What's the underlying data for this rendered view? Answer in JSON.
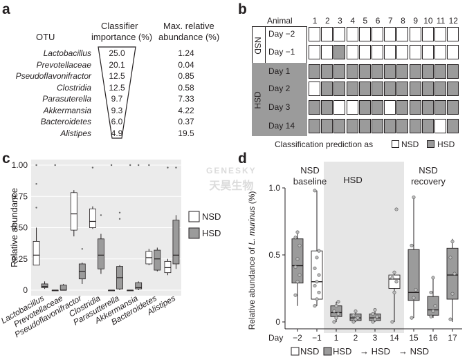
{
  "panel_a": {
    "letter": "a",
    "col_otu": "OTU",
    "col_importance": [
      "Classifier",
      "importance (%)"
    ],
    "col_abundance": [
      "Max. relative",
      "abundance (%)"
    ],
    "rows": [
      {
        "otu": "Lactobacillus",
        "importance": "25.0",
        "abundance": "1.24"
      },
      {
        "otu": "Prevotellaceae",
        "importance": "20.1",
        "abundance": "0.04"
      },
      {
        "otu": "Pseudoflavonifractor",
        "importance": "12.5",
        "abundance": "0.85"
      },
      {
        "otu": "Clostridia",
        "importance": "12.5",
        "abundance": "0.58"
      },
      {
        "otu": "Parasuterella",
        "importance": "9.7",
        "abundance": "7.33"
      },
      {
        "otu": "Akkermansia",
        "importance": "9.3",
        "abundance": "4.22"
      },
      {
        "otu": "Bacteroidetes",
        "importance": "6.0",
        "abundance": "0.37"
      },
      {
        "otu": "Alistipes",
        "importance": "4.9",
        "abundance": "19.5"
      }
    ]
  },
  "panel_b": {
    "letter": "b",
    "animal_label": "Animal",
    "animals": [
      "1",
      "2",
      "3",
      "4",
      "5",
      "6",
      "7",
      "8",
      "9",
      "10",
      "11",
      "12"
    ],
    "group_nsd": "NSD",
    "group_hsd": "HSD",
    "days": [
      "Day −2",
      "Day −1",
      "Day 1",
      "Day 2",
      "Day 3",
      "Day 14"
    ],
    "grid": [
      [
        "N",
        "N",
        "N",
        "N",
        "N",
        "N",
        "N",
        "N",
        "N",
        "N",
        "N",
        "N"
      ],
      [
        "N",
        "N",
        "H",
        "N",
        "N",
        "N",
        "N",
        "N",
        "N",
        "N",
        "N",
        "N"
      ],
      [
        "H",
        "H",
        "H",
        "H",
        "H",
        "H",
        "H",
        "H",
        "H",
        "H",
        "H",
        "H"
      ],
      [
        "N",
        "H",
        "H",
        "H",
        "H",
        "H",
        "H",
        "H",
        "H",
        "H",
        "H",
        "H"
      ],
      [
        "H",
        "H",
        "N",
        "N",
        "H",
        "H",
        "N",
        "H",
        "H",
        "H",
        "H",
        "H"
      ],
      [
        "H",
        "H",
        "H",
        "H",
        "H",
        "H",
        "H",
        "H",
        "H",
        "H",
        "N",
        "H"
      ]
    ],
    "legend_prefix": "Classification prediction as",
    "legend_nsd": "NSD",
    "legend_hsd": "HSD",
    "colors": {
      "nsd": "#ffffff",
      "hsd": "#9b9b9b"
    }
  },
  "watermark": {
    "line1": "GENESKY",
    "line2": "天昊生物"
  },
  "chart_data": [
    {
      "panel": "c",
      "type": "boxplot",
      "ylabel": "Relative abundance",
      "ylim": [
        0,
        1.0
      ],
      "yticks": [
        "0",
        "0.25",
        "0.50",
        "0.75",
        "1.00"
      ],
      "categories": [
        "Lactobacillus",
        "Prevotellaceae",
        "Pseudoflavonifractor",
        "Clostridia",
        "Parasutterella",
        "Akkermansia",
        "Bacteroidetes",
        "Alistipes"
      ],
      "legend": [
        "NSD",
        "HSD"
      ],
      "series": [
        {
          "name": "NSD",
          "boxes": [
            {
              "min": 0.2,
              "q1": 0.2,
              "median": 0.28,
              "q3": 0.39,
              "max": 0.5,
              "outliers": [
                0.66,
                0.85,
                1.0
              ]
            },
            {
              "min": 0.0,
              "q1": 0.0,
              "median": 0.0,
              "q3": 0.0,
              "max": 0.0,
              "outliers": [
                1.0
              ]
            },
            {
              "min": 0.43,
              "q1": 0.48,
              "median": 0.61,
              "q3": 0.78,
              "max": 0.8,
              "outliers": []
            },
            {
              "min": 0.49,
              "q1": 0.5,
              "median": 0.55,
              "q3": 0.65,
              "max": 0.67,
              "outliers": [
                0.98
              ]
            },
            {
              "min": 0.0,
              "q1": 0.0,
              "median": 0.0,
              "q3": 0.0,
              "max": 0.0,
              "outliers": [
                1.0
              ]
            },
            {
              "min": 0.0,
              "q1": 0.0,
              "median": 0.0,
              "q3": 0.0,
              "max": 0.0,
              "outliers": [
                1.0
              ]
            },
            {
              "min": 0.2,
              "q1": 0.21,
              "median": 0.26,
              "q3": 0.31,
              "max": 0.33,
              "outliers": [
                1.0
              ]
            },
            {
              "min": 0.12,
              "q1": 0.14,
              "median": 0.18,
              "q3": 0.23,
              "max": 0.25,
              "outliers": [
                0.98
              ]
            }
          ]
        },
        {
          "name": "HSD",
          "boxes": [
            {
              "min": 0.01,
              "q1": 0.02,
              "median": 0.03,
              "q3": 0.05,
              "max": 0.07,
              "outliers": []
            },
            {
              "min": 0.0,
              "q1": 0.0,
              "median": 0.0,
              "q3": 0.04,
              "max": 0.05,
              "outliers": []
            },
            {
              "min": 0.05,
              "q1": 0.09,
              "median": 0.15,
              "q3": 0.21,
              "max": 0.22,
              "outliers": [
                0.33
              ]
            },
            {
              "min": 0.13,
              "q1": 0.17,
              "median": 0.28,
              "q3": 0.41,
              "max": 0.45,
              "outliers": [
                0.6
              ]
            },
            {
              "min": 0.0,
              "q1": 0.01,
              "median": 0.1,
              "q3": 0.19,
              "max": 0.2,
              "outliers": [
                0.57,
                0.62
              ]
            },
            {
              "min": 0.0,
              "q1": 0.01,
              "median": 0.02,
              "q3": 0.06,
              "max": 0.07,
              "outliers": [
                1.0
              ]
            },
            {
              "min": 0.15,
              "q1": 0.16,
              "median": 0.25,
              "q3": 0.32,
              "max": 0.34,
              "outliers": []
            },
            {
              "min": 0.17,
              "q1": 0.21,
              "median": 0.28,
              "q3": 0.56,
              "max": 0.6,
              "outliers": [
                0.98
              ]
            }
          ]
        }
      ]
    },
    {
      "panel": "d",
      "type": "boxplot",
      "ylabel_prefix": "Relative abundance of ",
      "ylabel_italic": "L. murinus",
      "ylabel_suffix": " (%)",
      "ylim": [
        0,
        1.0
      ],
      "yticks": [
        "0",
        "0.5",
        "1.0"
      ],
      "x_title": "Day",
      "categories": [
        "−2",
        "−1",
        "1",
        "2",
        "3",
        "14",
        "15",
        "16",
        "17"
      ],
      "phases": [
        "NSD baseline",
        "HSD",
        "NSD recovery"
      ],
      "shaded_region": [
        1,
        14
      ],
      "legend_text": "NSD  HSD → HSD → NSD",
      "legend": {
        "nsd": "NSD",
        "hsd": "HSD",
        "arrow1": "→ HSD",
        "arrow2": "→ NSD"
      },
      "box_style": [
        "H",
        "N",
        "H",
        "H",
        "H",
        "N",
        "H",
        "H",
        "H"
      ],
      "boxes": [
        {
          "min": 0.12,
          "q1": 0.29,
          "median": 0.42,
          "q3": 0.62,
          "max": 0.68,
          "points": [
            0.2,
            0.3,
            0.35,
            0.41,
            0.47,
            0.57,
            0.63,
            0.67
          ]
        },
        {
          "min": 0.12,
          "q1": 0.17,
          "median": 0.3,
          "q3": 0.53,
          "max": 0.98,
          "points": [
            0.12,
            0.17,
            0.22,
            0.27,
            0.3,
            0.35,
            0.4,
            0.48,
            0.53,
            0.98
          ]
        },
        {
          "min": 0.0,
          "q1": 0.04,
          "median": 0.07,
          "q3": 0.12,
          "max": 0.15,
          "points": [
            0.0,
            0.03,
            0.06,
            0.08,
            0.12,
            0.15
          ]
        },
        {
          "min": 0.0,
          "q1": 0.01,
          "median": 0.03,
          "q3": 0.06,
          "max": 0.09,
          "points": [
            0.0,
            0.02,
            0.03,
            0.05,
            0.08
          ]
        },
        {
          "min": 0.0,
          "q1": 0.01,
          "median": 0.03,
          "q3": 0.06,
          "max": 0.1,
          "points": [
            0.0,
            0.02,
            0.04,
            0.06,
            0.09
          ]
        },
        {
          "min": 0.0,
          "q1": 0.25,
          "median": 0.32,
          "q3": 0.35,
          "max": 0.38,
          "points": [
            0.0,
            0.22,
            0.3,
            0.33,
            0.37,
            0.84
          ]
        },
        {
          "min": 0.03,
          "q1": 0.16,
          "median": 0.22,
          "q3": 0.54,
          "max": 0.93,
          "points": [
            0.03,
            0.18,
            0.24,
            0.57,
            0.93
          ]
        },
        {
          "min": 0.03,
          "q1": 0.05,
          "median": 0.09,
          "q3": 0.19,
          "max": 0.32,
          "points": [
            0.04,
            0.08,
            0.12,
            0.22,
            0.33
          ]
        },
        {
          "min": 0.0,
          "q1": 0.17,
          "median": 0.35,
          "q3": 0.55,
          "max": 0.62,
          "points": [
            0.02,
            0.21,
            0.36,
            0.48,
            0.6
          ]
        }
      ]
    }
  ]
}
